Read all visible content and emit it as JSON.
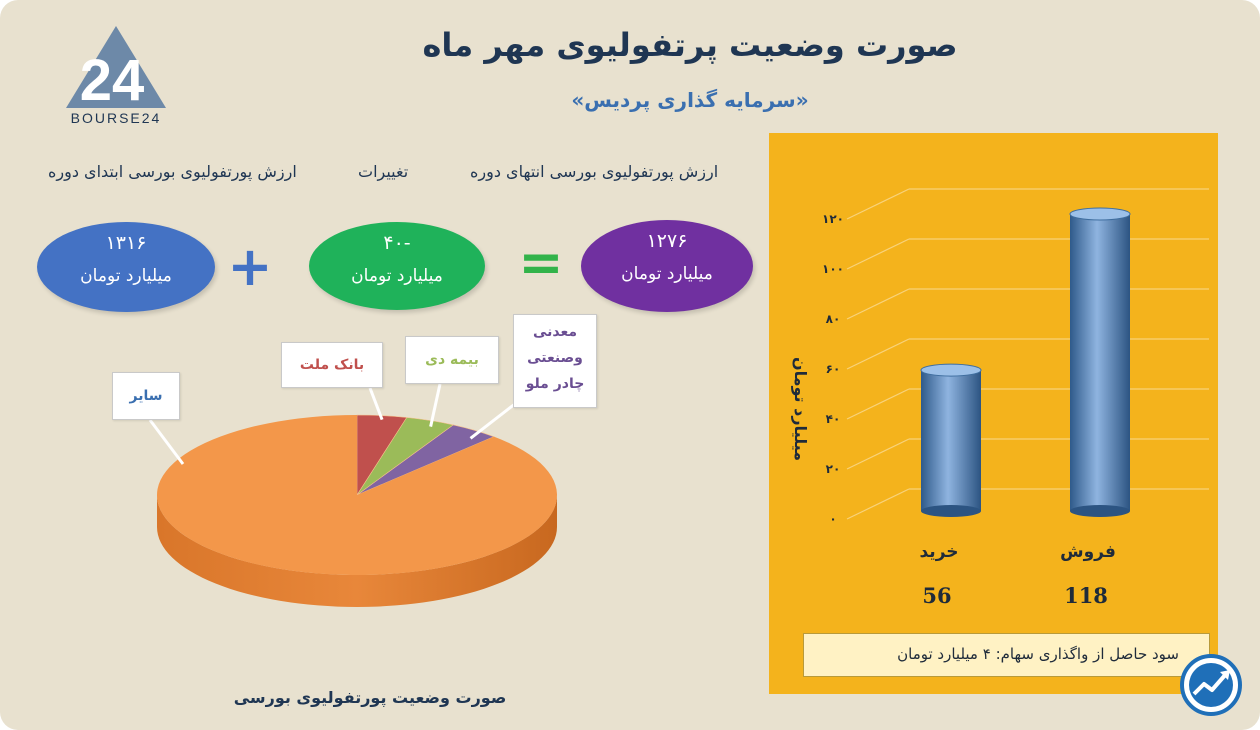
{
  "brand": {
    "logo_text": "BOURSE24",
    "logo_number": "24"
  },
  "header": {
    "title": "صورت وضعیت پرتفولیوی مهر ماه",
    "subtitle": "«سرمایه گذاری پردیس»"
  },
  "summary": {
    "end_label": "ارزش پورتفولیوی بورسی انتهای دوره",
    "change_label": "تغییرات",
    "start_label": "ارزش پورتفولیوی بورسی ابتدای دوره",
    "end_value": "۱۲۷۶",
    "change_value": "-۴۰",
    "start_value": "۱۳۱۶",
    "unit": "میلیارد تومان",
    "equals": "=",
    "plus": "+",
    "colors": {
      "end": "#7030a0",
      "change": "#1fb25a",
      "start": "#4472c4",
      "equals": "#32b34a",
      "plus": "#4472c4"
    }
  },
  "chart_data": [
    {
      "type": "pie",
      "title": "صورت وضعیت پورتفولیوی بورسی",
      "slices": [
        {
          "label": "سایر",
          "value": 88,
          "color": "#f3974a"
        },
        {
          "label": "بانک ملت",
          "value": 4,
          "color": "#c0504d"
        },
        {
          "label": "بیمه دی",
          "value": 4,
          "color": "#9bbb59"
        },
        {
          "label": "معدنی وصنعتی چادر ملو",
          "value": 4,
          "color": "#8064a2"
        }
      ]
    },
    {
      "type": "bar",
      "categories": [
        "خرید",
        "فروش"
      ],
      "values": [
        56,
        118
      ],
      "data_labels": [
        "56",
        "118"
      ],
      "ylabel": "میلیارد تومان",
      "ylim": [
        0,
        120
      ],
      "yticks": [
        0,
        20,
        40,
        60,
        80,
        100,
        120
      ],
      "ytick_labels": [
        "۰",
        "۲۰",
        "۴۰",
        "۶۰",
        "۸۰",
        "۱۰۰",
        "۱۲۰"
      ],
      "grid": true,
      "bar_color": "#4f81bd",
      "panel_color": "#f4b31c"
    }
  ],
  "profit": {
    "label": "سود حاصل از واگذاری سهام:",
    "value": "۴ میلیارد تومان"
  }
}
